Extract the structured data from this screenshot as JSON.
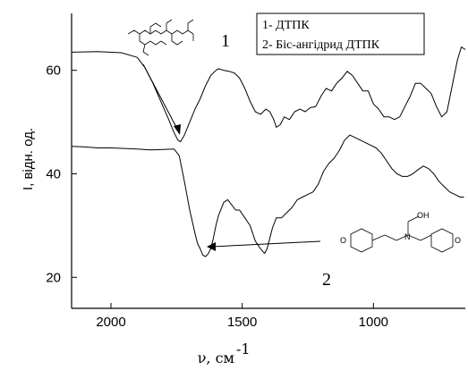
{
  "chart_data": {
    "type": "line",
    "xlabel": "ν, см",
    "xlabel_superscript": "-1",
    "ylabel": "I, відн. од.",
    "x_reversed": true,
    "xlim": [
      2150,
      650
    ],
    "ylim": [
      14,
      71
    ],
    "x_ticks": [
      2000,
      1500,
      1000
    ],
    "x_tick_labels": [
      "2000",
      "1500",
      "1000"
    ],
    "y_ticks": [
      20,
      40,
      60
    ],
    "y_tick_labels": [
      "20",
      "40",
      "60"
    ],
    "legend_items": [
      "1- ДТПК",
      "2- Біс-ангідрид ДТПК"
    ],
    "legend_position": "top-right",
    "curve_labels": [
      "1",
      "2"
    ],
    "series": [
      {
        "name": "1- ДТПК",
        "color": "#000000",
        "x": [
          2150,
          2050,
          1960,
          1900,
          1870,
          1840,
          1810,
          1780,
          1760,
          1745,
          1735,
          1720,
          1700,
          1680,
          1660,
          1640,
          1620,
          1600,
          1590,
          1570,
          1550,
          1530,
          1510,
          1490,
          1470,
          1450,
          1430,
          1410,
          1395,
          1380,
          1370,
          1355,
          1340,
          1320,
          1300,
          1280,
          1260,
          1240,
          1220,
          1200,
          1180,
          1160,
          1140,
          1120,
          1100,
          1080,
          1060,
          1040,
          1020,
          1000,
          980,
          960,
          940,
          920,
          900,
          880,
          860,
          840,
          820,
          800,
          780,
          760,
          740,
          720,
          700,
          680,
          665,
          650
        ],
        "y": [
          63.5,
          63.6,
          63.4,
          62.5,
          60.5,
          57.5,
          54,
          50.5,
          48,
          46.5,
          46.2,
          47.5,
          50,
          52.5,
          54.5,
          57,
          59,
          60,
          60.3,
          60,
          59.8,
          59.5,
          58.5,
          56.5,
          54,
          52,
          51.5,
          52.5,
          52,
          50.5,
          49,
          49.5,
          51,
          50.5,
          52,
          52.5,
          52,
          52.8,
          53,
          55,
          56.5,
          56,
          57.5,
          58.5,
          59.8,
          59,
          57.5,
          56,
          56,
          53.5,
          52.5,
          51,
          51,
          50.5,
          51,
          53,
          55,
          57.5,
          57.5,
          56.5,
          55.5,
          53,
          51,
          52,
          57,
          62,
          64.5,
          64
        ]
      },
      {
        "name": "2- Біс-ангідрид ДТПК",
        "color": "#000000",
        "x": [
          2150,
          2100,
          2050,
          2000,
          1950,
          1900,
          1850,
          1800,
          1760,
          1740,
          1720,
          1700,
          1680,
          1670,
          1660,
          1650,
          1640,
          1630,
          1620,
          1610,
          1600,
          1590,
          1570,
          1555,
          1540,
          1525,
          1510,
          1490,
          1470,
          1450,
          1430,
          1415,
          1405,
          1395,
          1385,
          1370,
          1350,
          1330,
          1310,
          1290,
          1270,
          1250,
          1230,
          1210,
          1190,
          1170,
          1150,
          1130,
          1110,
          1090,
          1070,
          1050,
          1030,
          1010,
          990,
          970,
          950,
          930,
          910,
          890,
          870,
          850,
          830,
          810,
          790,
          770,
          750,
          730,
          710,
          690,
          670,
          655
        ],
        "y": [
          45.3,
          45.2,
          45,
          45,
          44.9,
          44.8,
          44.6,
          44.7,
          44.8,
          43.5,
          38.5,
          33,
          28.5,
          26.5,
          25.5,
          24.3,
          24,
          24.5,
          25.5,
          27.5,
          30,
          32,
          34.5,
          35,
          34,
          33,
          33,
          31.5,
          30,
          27,
          25.5,
          24.6,
          25.5,
          27.5,
          29.5,
          31.5,
          31.5,
          32.5,
          33.5,
          35,
          35.5,
          36,
          36.5,
          38,
          40.5,
          42,
          43,
          44.5,
          46.5,
          47.5,
          47,
          46.5,
          46,
          45.5,
          45,
          44,
          42.5,
          41,
          40,
          39.5,
          39.5,
          40,
          40.8,
          41.5,
          41,
          40,
          38.5,
          37.5,
          36.5,
          36,
          35.5,
          35.5
        ]
      }
    ],
    "annotations": [
      {
        "type": "arrow",
        "from_label": "structure-1",
        "to": [
          1745,
          46.2
        ]
      },
      {
        "type": "arrow",
        "from_label": "structure-2",
        "to": [
          1630,
          24.2
        ]
      }
    ]
  },
  "structures": {
    "bis_anhydride_oh_label": "OH",
    "bis_anhydride_n_label": "N",
    "o_label": "O"
  }
}
